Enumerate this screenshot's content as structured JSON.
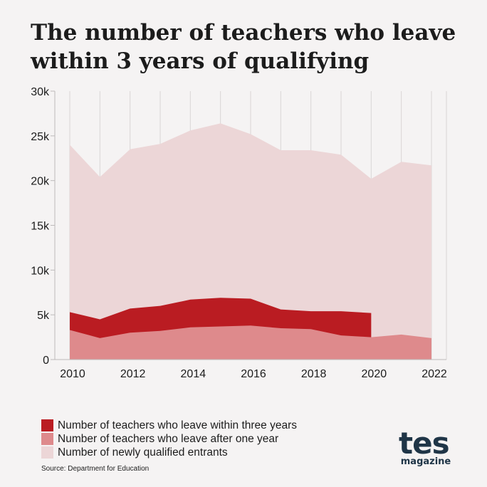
{
  "title": [
    "The number of teachers who leave",
    "within 3 years of qualifying"
  ],
  "chart_data": {
    "type": "area",
    "x": [
      2010,
      2011,
      2012,
      2013,
      2014,
      2015,
      2016,
      2017,
      2018,
      2019,
      2020,
      2021,
      2022
    ],
    "xticks": [
      "2010",
      "2012",
      "2014",
      "2016",
      "2018",
      "2020",
      "2022"
    ],
    "yticks": [
      "0",
      "5k",
      "10k",
      "15k",
      "20k",
      "25k",
      "30k"
    ],
    "ylim": [
      0,
      30000
    ],
    "grid": "vertical",
    "series": [
      {
        "name": "Number of newly qualified entrants",
        "color": "#ecd6d7",
        "values": [
          24000,
          20400,
          23500,
          24100,
          25600,
          26400,
          25200,
          23400,
          23400,
          22900,
          20200,
          22100,
          21700
        ]
      },
      {
        "name": "Number of teachers who leave within three years",
        "color": "#ba1c22",
        "values": [
          5300,
          4500,
          5700,
          6000,
          6700,
          6900,
          6800,
          5600,
          5400,
          5400,
          5200,
          null,
          null
        ]
      },
      {
        "name": "Number of teachers who leave after one year",
        "color": "#de8a8c",
        "values": [
          3300,
          2400,
          3000,
          3200,
          3600,
          3700,
          3800,
          3500,
          3400,
          2700,
          2500,
          2800,
          2400
        ]
      }
    ]
  },
  "legend": [
    {
      "label": "Number of teachers who leave within three years",
      "color": "#ba1c22"
    },
    {
      "label": "Number of teachers who leave after one year",
      "color": "#de8a8c"
    },
    {
      "label": "Number of newly qualified entrants",
      "color": "#ecd6d7"
    }
  ],
  "source": "Source: Department for Education",
  "logo": {
    "main": "tes",
    "sub": "magazine"
  }
}
